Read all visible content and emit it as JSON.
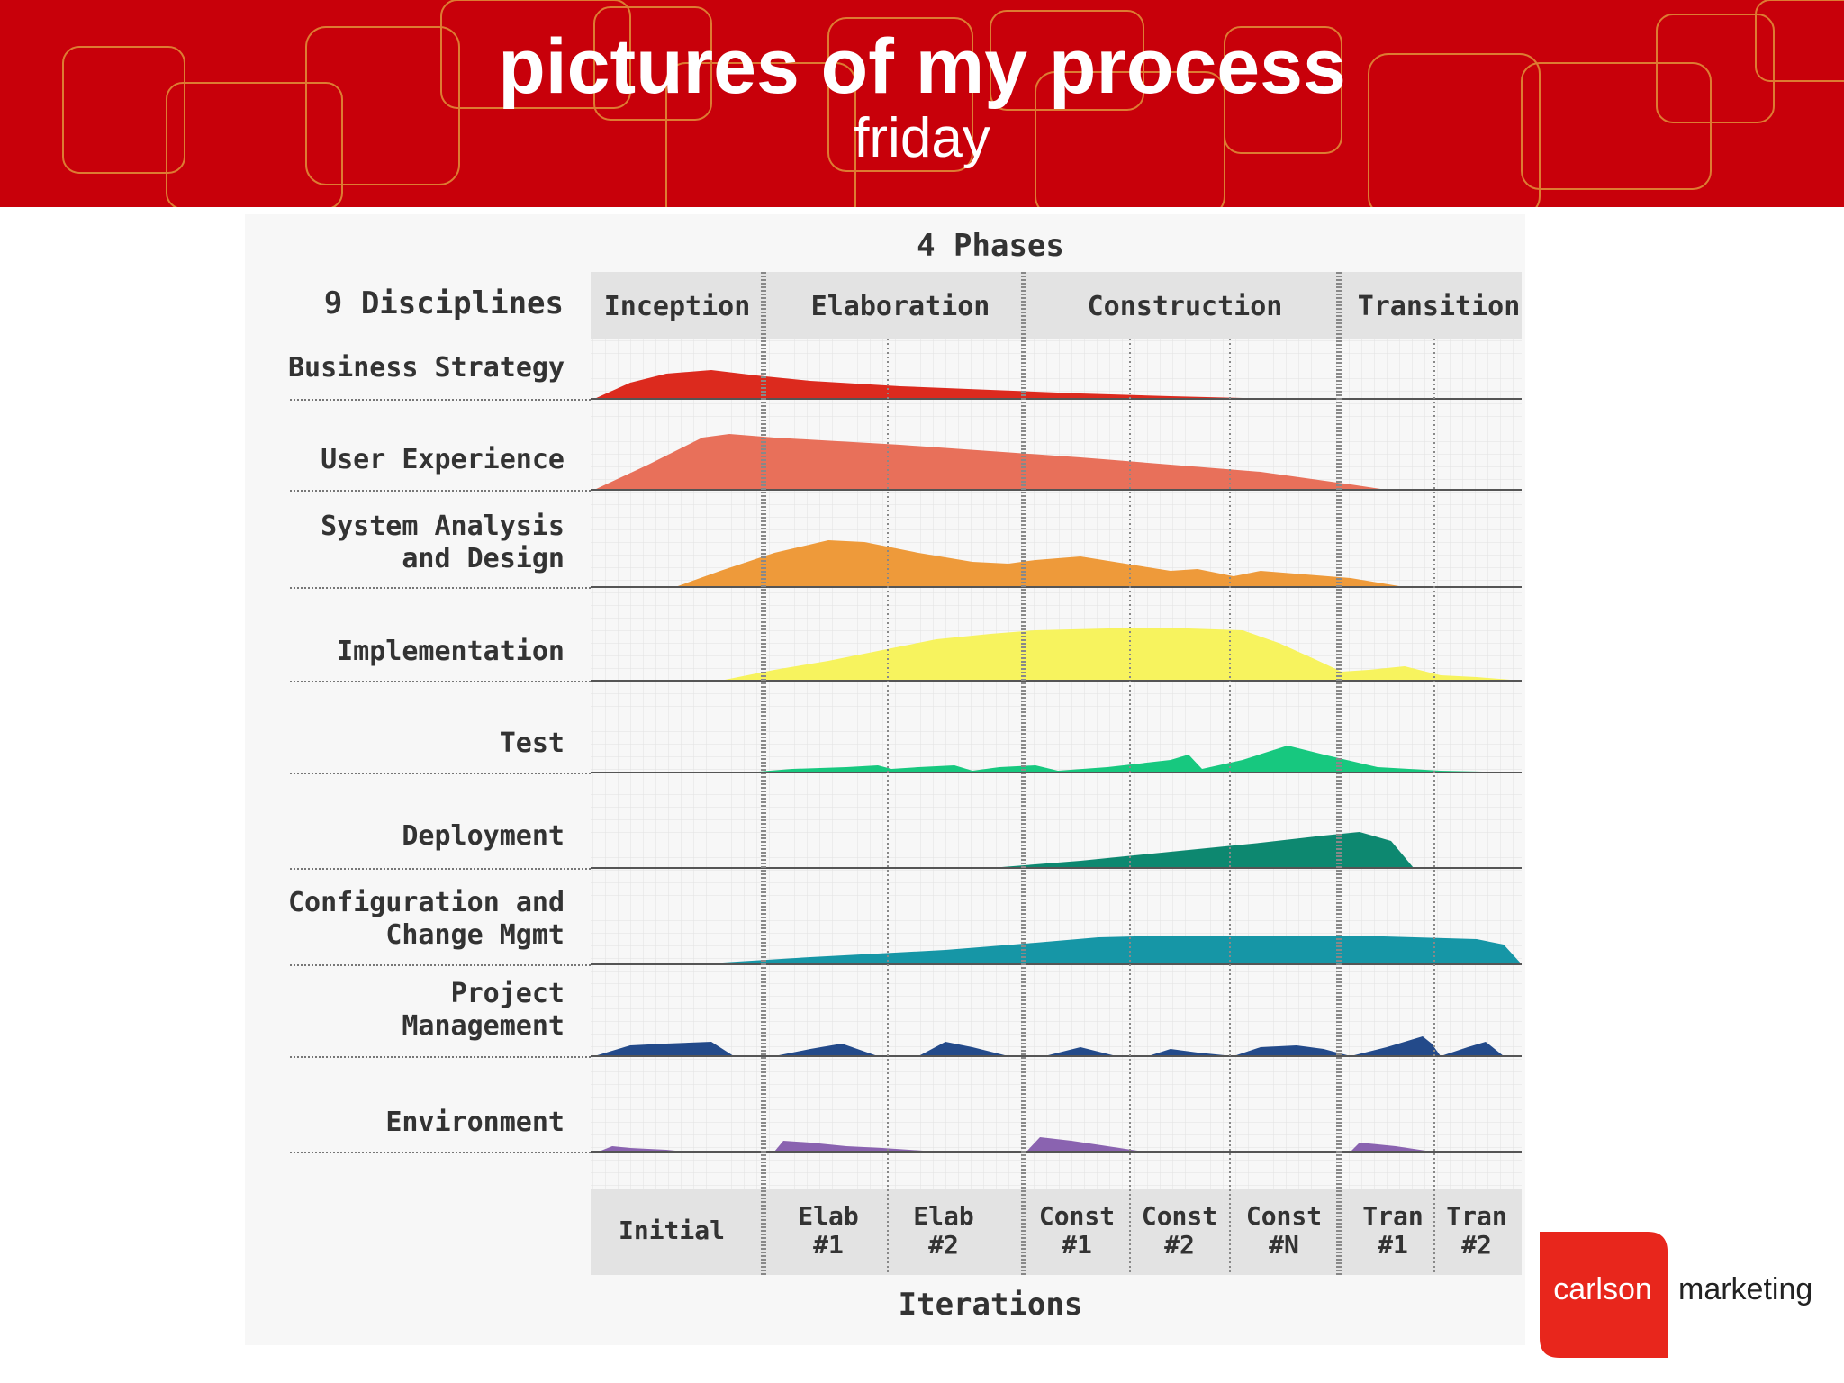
{
  "slide": {
    "title": "pictures of my process",
    "subtitle": "friday"
  },
  "diagram": {
    "phases_title": "4 Phases",
    "disciplines_title": "9 Disciplines",
    "iterations_title": "Iterations",
    "phases": [
      "Inception",
      "Elaboration",
      "Construction",
      "Transition"
    ],
    "disciplines": [
      {
        "lines": [
          "Business Strategy"
        ],
        "color": "#dc2a1e"
      },
      {
        "lines": [
          "User Experience"
        ],
        "color": "#e8705a"
      },
      {
        "lines": [
          "System Analysis",
          "and Design"
        ],
        "color": "#ee9a3a"
      },
      {
        "lines": [
          "Implementation"
        ],
        "color": "#f7f35e"
      },
      {
        "lines": [
          "Test"
        ],
        "color": "#17c87f"
      },
      {
        "lines": [
          "Deployment"
        ],
        "color": "#0d8870"
      },
      {
        "lines": [
          "Configuration and",
          "Change Mgmt"
        ],
        "color": "#1696a6"
      },
      {
        "lines": [
          "Project",
          "Management"
        ],
        "color": "#234a8a"
      },
      {
        "lines": [
          "Environment"
        ],
        "color": "#8a63b0"
      }
    ],
    "iterations": [
      [
        "Initial"
      ],
      [
        "Elab",
        "#1"
      ],
      [
        "Elab",
        "#2"
      ],
      [
        "Const",
        "#1"
      ],
      [
        "Const",
        "#2"
      ],
      [
        "Const",
        "#N"
      ],
      [
        "Tran",
        "#1"
      ],
      [
        "Tran",
        "#2"
      ]
    ]
  },
  "logo": {
    "word1": "carlson",
    "word2": "marketing",
    "color": "#e8261c"
  }
}
